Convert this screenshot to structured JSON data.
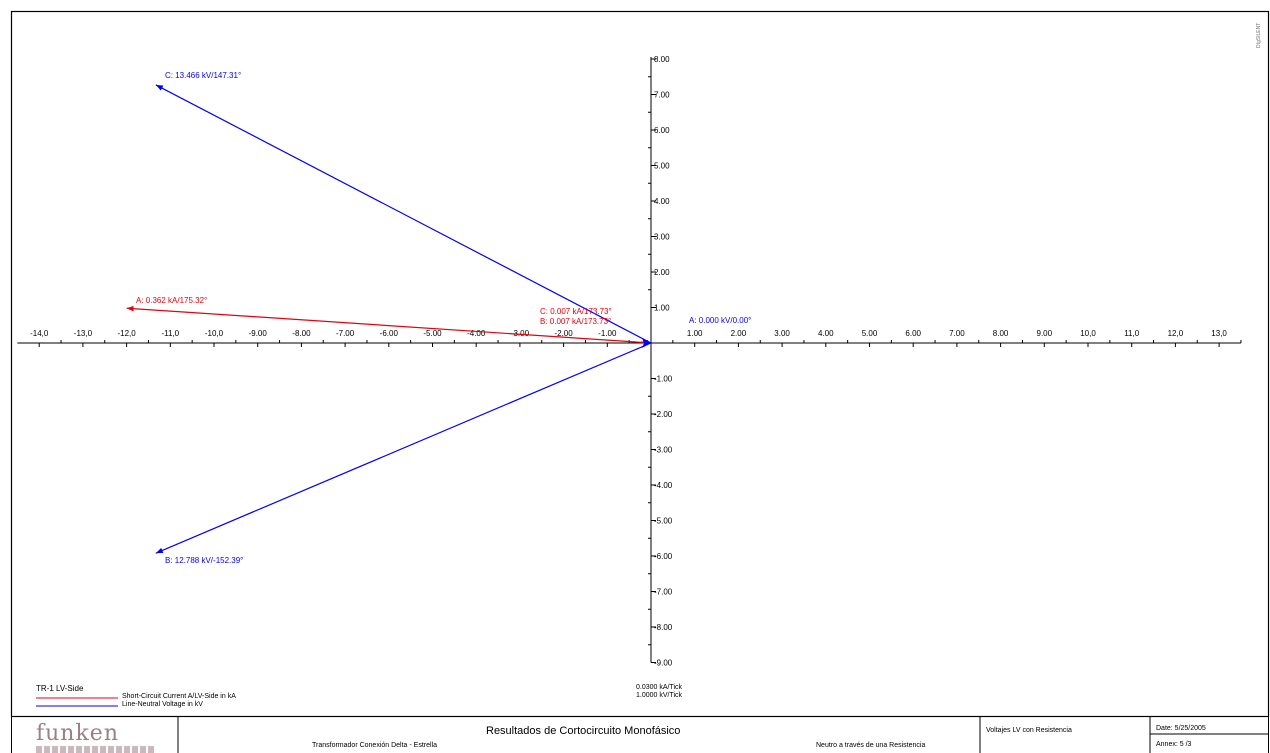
{
  "chart_data": {
    "type": "phasor",
    "x_ticks": [
      "-14,0",
      "-13,0",
      "-12,0",
      "-11,0",
      "-10,0",
      "-9.00",
      "-8.00",
      "-7.00",
      "-6.00",
      "-5.00",
      "-4.00",
      "-3.00",
      "-2.00",
      "-1.00",
      "1.00",
      "2.00",
      "3.00",
      "4.00",
      "5.00",
      "6.00",
      "7.00",
      "8.00",
      "9.00",
      "10,0",
      "11,0",
      "12,0",
      "13,0"
    ],
    "y_ticks_pos": [
      "8.00",
      "7.00",
      "6.00",
      "5.00",
      "4.00",
      "3.00",
      "2.00",
      "1.00"
    ],
    "y_ticks_neg": [
      "-1.00",
      "-2.00",
      "-3.00",
      "-4.00",
      "-5.00",
      "-6.00",
      "-7.00",
      "-8.00",
      "-9.00"
    ],
    "xlim": [
      -14.5,
      13.5
    ],
    "ylim": [
      -9,
      8
    ],
    "scales": [
      "0.0300 kA/Tick",
      "1.0000 kV/Tick"
    ],
    "series": [
      {
        "name": "Short-Circuit Current A/LV-Side in kA",
        "color": "#e8000b",
        "phasors": [
          {
            "label": "A: 0.362 kA/175.32°",
            "x": -12.0,
            "y": 0.98
          },
          {
            "label": "B: 0.007 kA/173.73°",
            "x": -0.23,
            "y": 0.025
          },
          {
            "label": "C: 0.007 kA/173.73°",
            "x": -0.23,
            "y": 0.025
          }
        ]
      },
      {
        "name": "Line-Neutral Voltage in kV",
        "color": "#0000ff",
        "phasors": [
          {
            "label": "A: 0.000 kV/0.00°",
            "x": 0.0,
            "y": 0.0
          },
          {
            "label": "B: 12.788 kV/-152.39°",
            "x": -11.33,
            "y": -5.92
          },
          {
            "label": "C: 13.466 kV/147.31°",
            "x": -11.33,
            "y": 7.27
          }
        ]
      }
    ]
  },
  "legend": {
    "title": "TR-1 LV-Side"
  },
  "title_block": {
    "company": "funken",
    "title": "Resultados de  Cortocircuito Monofásico",
    "subtitle_left": "Transformador Conexión Delta - Estrella",
    "case_title": "Voltajes LV con Resistencia",
    "case_sub": "Neutro a través de una Resistencia",
    "date": "Date:  5/25/2005",
    "annex": "Annex: 5 /3"
  },
  "corner_text": "DIgSILENT"
}
